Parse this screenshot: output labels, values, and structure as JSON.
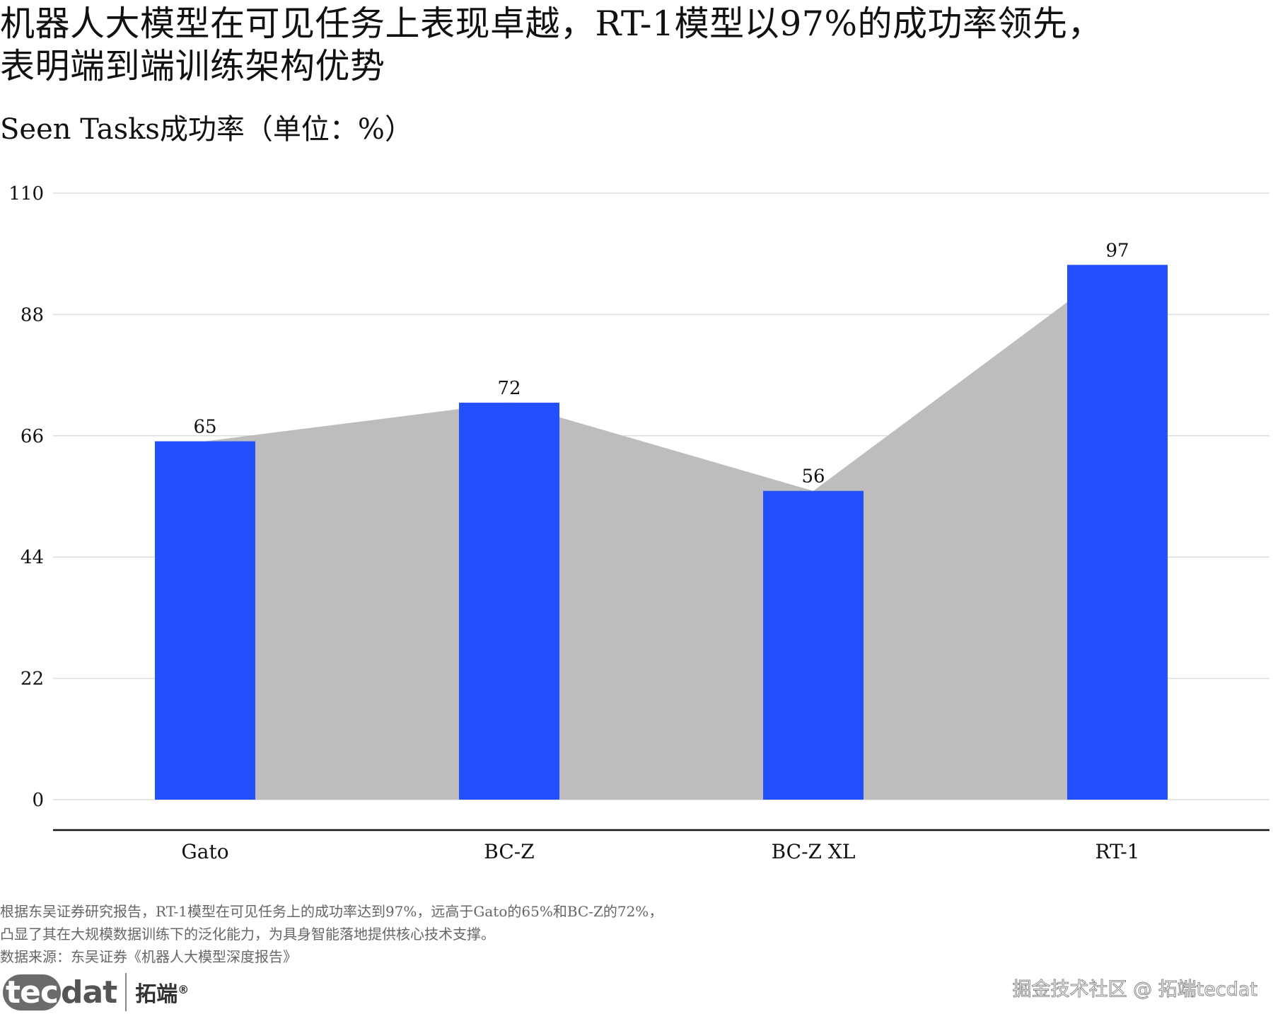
{
  "title_lines": [
    "机器人大模型在可见任务上表现卓越，RT-1模型以97%的成功率领先，",
    "表明端到端训练架构优势"
  ],
  "subtitle": "Seen Tasks成功率（单位：%）",
  "chart_data": {
    "type": "bar",
    "categories": [
      "Gato",
      "BC-Z",
      "BC-Z XL",
      "RT-1"
    ],
    "values": [
      65,
      72,
      56,
      97
    ],
    "data_labels": [
      "65",
      "72",
      "56",
      "97"
    ],
    "y_ticks": [
      0,
      22,
      44,
      66,
      88,
      110
    ],
    "ylim": [
      0,
      110
    ],
    "xlabel": "",
    "ylabel": "",
    "grid": true,
    "overlay": "area connecting bar tops",
    "colors": {
      "bar": "#2350ff",
      "area": "#bdbdbd",
      "grid": "#dddddd",
      "axis": "#111111"
    }
  },
  "footnote": [
    "根据东吴证券研究报告，RT-1模型在可见任务上的成功率达到97%，远高于Gato的65%和BC-Z的72%，",
    "凸显了其在大规模数据训练下的泛化能力，为具身智能落地提供核心技术支撑。",
    "数据来源：东吴证券《机器人大模型深度报告》"
  ],
  "logo": {
    "mark_highlight": "tec",
    "mark_rest": "dat",
    "cn": "拓端",
    "reg": "®"
  },
  "watermark": "掘金技术社区 @ 拓端tecdat"
}
